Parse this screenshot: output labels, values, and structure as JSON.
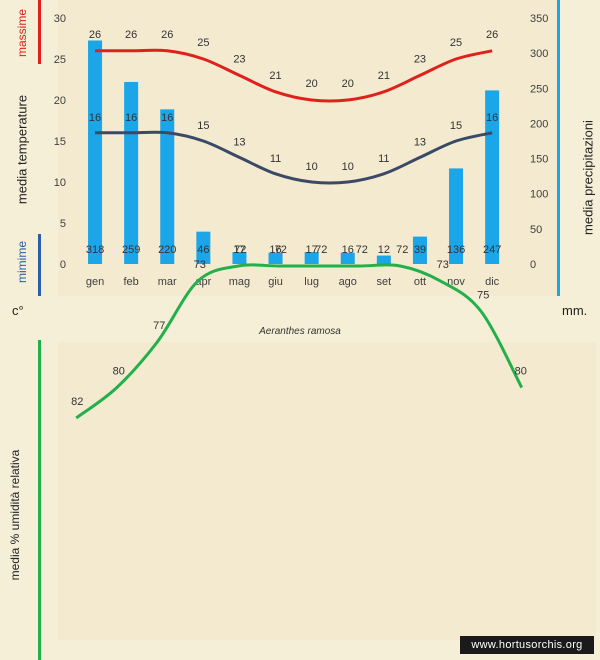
{
  "chart_data": [
    {
      "type": "bar+line",
      "title": "Aeranthes ramosa",
      "categories": [
        "gen",
        "feb",
        "mar",
        "apr",
        "mag",
        "giu",
        "lug",
        "ago",
        "set",
        "ott",
        "nov",
        "dic"
      ],
      "precipitation": {
        "name": "media precipitazioni",
        "unit": "mm.",
        "values": [
          318,
          259,
          220,
          46,
          17,
          16,
          17,
          16,
          12,
          39,
          136,
          247
        ],
        "ylim": [
          0,
          350
        ],
        "ticks": [
          0,
          50,
          100,
          150,
          200,
          250,
          300,
          350
        ]
      },
      "temp_max": {
        "name": "massime",
        "values": [
          26,
          26,
          26,
          25,
          23,
          21,
          20,
          20,
          21,
          23,
          25,
          26
        ]
      },
      "temp_min": {
        "name": "mimime",
        "values": [
          16,
          16,
          16,
          15,
          13,
          11,
          10,
          10,
          11,
          13,
          15,
          16
        ]
      },
      "temperature_axis": {
        "label": "media temperature",
        "unit": "c°",
        "ylim": [
          0,
          30
        ],
        "ticks": [
          0,
          5,
          10,
          15,
          20,
          25,
          30
        ]
      }
    },
    {
      "type": "line",
      "name": "media % umidità relativa",
      "categories": [
        "gen",
        "feb",
        "mar",
        "apr",
        "mag",
        "giu",
        "lug",
        "ago",
        "set",
        "ott",
        "nov",
        "dic"
      ],
      "values": [
        82,
        80,
        77,
        73,
        72,
        72,
        72,
        72,
        72,
        73,
        75,
        80
      ]
    }
  ],
  "labels": {
    "caption": "Aeranthes ramosa",
    "temp_axis_label": "media  temperature",
    "precip_axis_label": "media  precipitazioni",
    "max_label": "massime",
    "min_label": "mimime",
    "unit_left": "c°",
    "unit_right": "mm.",
    "humidity_axis_label": "media %  umidità relativa",
    "watermark": "www.hortusorchis.org"
  },
  "colors": {
    "bar": "#1aa6e8",
    "max_line": "#e0201b",
    "min_line": "#3a4a66",
    "humidity_line": "#22b04a",
    "left_bar_red": "#e0201b",
    "left_bar_blue": "#2a5fa8",
    "right_bar": "#1aa6e8",
    "bottom_left_bar": "#22b04a"
  }
}
